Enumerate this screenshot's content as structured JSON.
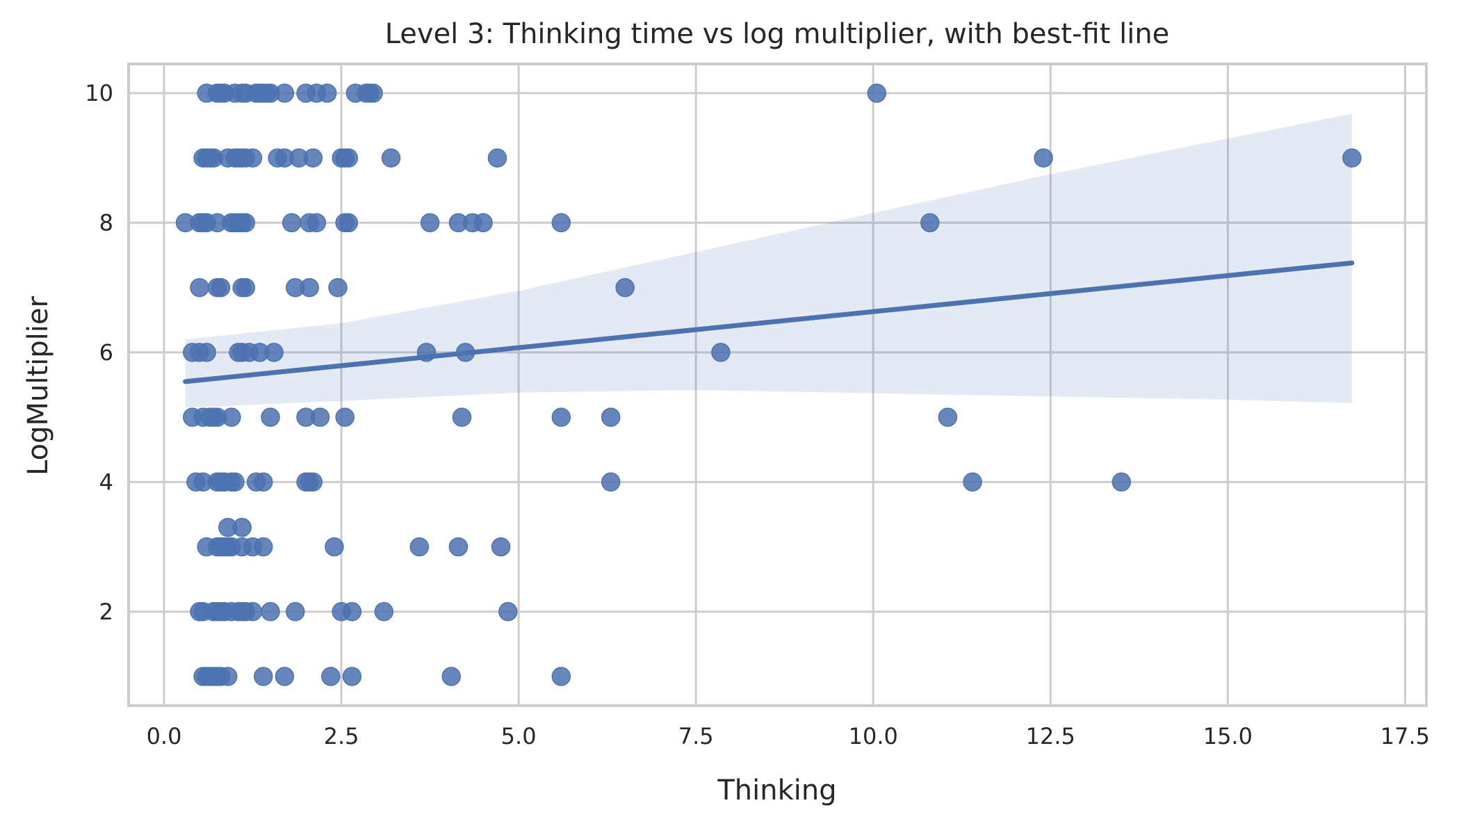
{
  "chart_data": {
    "type": "scatter",
    "title": "Level 3: Thinking time vs log multiplier, with best-fit line",
    "xlabel": "Thinking",
    "ylabel": "LogMultiplier",
    "xlim": [
      -0.5,
      17.8
    ],
    "ylim": [
      0.55,
      10.45
    ],
    "xticks": [
      0.0,
      2.5,
      5.0,
      7.5,
      10.0,
      12.5,
      15.0,
      17.5
    ],
    "xtick_labels": [
      "0.0",
      "2.5",
      "5.0",
      "7.5",
      "10.0",
      "12.5",
      "15.0",
      "17.5"
    ],
    "yticks": [
      2,
      4,
      6,
      8,
      10
    ],
    "ytick_labels": [
      "2",
      "4",
      "6",
      "8",
      "10"
    ],
    "grid": true,
    "colors": {
      "point": "#4c72b0",
      "line": "#4c72b0",
      "band": "#4c72b0"
    },
    "points": [
      {
        "x": 0.6,
        "y": 10
      },
      {
        "x": 0.75,
        "y": 10
      },
      {
        "x": 0.8,
        "y": 10
      },
      {
        "x": 0.85,
        "y": 10
      },
      {
        "x": 1.0,
        "y": 10
      },
      {
        "x": 1.1,
        "y": 10
      },
      {
        "x": 1.15,
        "y": 10
      },
      {
        "x": 1.3,
        "y": 10
      },
      {
        "x": 1.35,
        "y": 10
      },
      {
        "x": 1.4,
        "y": 10
      },
      {
        "x": 1.45,
        "y": 10
      },
      {
        "x": 1.5,
        "y": 10
      },
      {
        "x": 1.7,
        "y": 10
      },
      {
        "x": 2.0,
        "y": 10
      },
      {
        "x": 2.15,
        "y": 10
      },
      {
        "x": 2.3,
        "y": 10
      },
      {
        "x": 2.7,
        "y": 10
      },
      {
        "x": 2.85,
        "y": 10
      },
      {
        "x": 2.9,
        "y": 10
      },
      {
        "x": 2.95,
        "y": 10
      },
      {
        "x": 10.05,
        "y": 10
      },
      {
        "x": 0.55,
        "y": 9
      },
      {
        "x": 0.6,
        "y": 9
      },
      {
        "x": 0.65,
        "y": 9
      },
      {
        "x": 0.7,
        "y": 9
      },
      {
        "x": 0.9,
        "y": 9
      },
      {
        "x": 1.0,
        "y": 9
      },
      {
        "x": 1.05,
        "y": 9
      },
      {
        "x": 1.1,
        "y": 9
      },
      {
        "x": 1.15,
        "y": 9
      },
      {
        "x": 1.25,
        "y": 9
      },
      {
        "x": 1.6,
        "y": 9
      },
      {
        "x": 1.7,
        "y": 9
      },
      {
        "x": 1.9,
        "y": 9
      },
      {
        "x": 2.1,
        "y": 9
      },
      {
        "x": 2.5,
        "y": 9
      },
      {
        "x": 2.55,
        "y": 9
      },
      {
        "x": 2.6,
        "y": 9
      },
      {
        "x": 3.2,
        "y": 9
      },
      {
        "x": 4.7,
        "y": 9
      },
      {
        "x": 12.4,
        "y": 9
      },
      {
        "x": 16.75,
        "y": 9
      },
      {
        "x": 0.3,
        "y": 8
      },
      {
        "x": 0.5,
        "y": 8
      },
      {
        "x": 0.55,
        "y": 8
      },
      {
        "x": 0.6,
        "y": 8
      },
      {
        "x": 0.75,
        "y": 8
      },
      {
        "x": 0.95,
        "y": 8
      },
      {
        "x": 1.0,
        "y": 8
      },
      {
        "x": 1.05,
        "y": 8
      },
      {
        "x": 1.1,
        "y": 8
      },
      {
        "x": 1.15,
        "y": 8
      },
      {
        "x": 1.8,
        "y": 8
      },
      {
        "x": 2.05,
        "y": 8
      },
      {
        "x": 2.15,
        "y": 8
      },
      {
        "x": 2.55,
        "y": 8
      },
      {
        "x": 2.6,
        "y": 8
      },
      {
        "x": 3.75,
        "y": 8
      },
      {
        "x": 4.15,
        "y": 8
      },
      {
        "x": 4.35,
        "y": 8
      },
      {
        "x": 4.5,
        "y": 8
      },
      {
        "x": 5.6,
        "y": 8
      },
      {
        "x": 10.8,
        "y": 8
      },
      {
        "x": 0.5,
        "y": 7
      },
      {
        "x": 0.75,
        "y": 7
      },
      {
        "x": 0.8,
        "y": 7
      },
      {
        "x": 1.1,
        "y": 7
      },
      {
        "x": 1.15,
        "y": 7
      },
      {
        "x": 1.85,
        "y": 7
      },
      {
        "x": 2.05,
        "y": 7
      },
      {
        "x": 2.45,
        "y": 7
      },
      {
        "x": 6.5,
        "y": 7
      },
      {
        "x": 0.4,
        "y": 6
      },
      {
        "x": 0.5,
        "y": 6
      },
      {
        "x": 0.6,
        "y": 6
      },
      {
        "x": 1.05,
        "y": 6
      },
      {
        "x": 1.1,
        "y": 6
      },
      {
        "x": 1.2,
        "y": 6
      },
      {
        "x": 1.35,
        "y": 6
      },
      {
        "x": 1.55,
        "y": 6
      },
      {
        "x": 3.7,
        "y": 6
      },
      {
        "x": 4.25,
        "y": 6
      },
      {
        "x": 7.85,
        "y": 6
      },
      {
        "x": 0.4,
        "y": 5
      },
      {
        "x": 0.55,
        "y": 5
      },
      {
        "x": 0.65,
        "y": 5
      },
      {
        "x": 0.7,
        "y": 5
      },
      {
        "x": 0.75,
        "y": 5
      },
      {
        "x": 0.95,
        "y": 5
      },
      {
        "x": 1.5,
        "y": 5
      },
      {
        "x": 2.0,
        "y": 5
      },
      {
        "x": 2.2,
        "y": 5
      },
      {
        "x": 2.55,
        "y": 5
      },
      {
        "x": 4.2,
        "y": 5
      },
      {
        "x": 5.6,
        "y": 5
      },
      {
        "x": 6.3,
        "y": 5
      },
      {
        "x": 11.05,
        "y": 5
      },
      {
        "x": 0.45,
        "y": 4
      },
      {
        "x": 0.55,
        "y": 4
      },
      {
        "x": 0.75,
        "y": 4
      },
      {
        "x": 0.8,
        "y": 4
      },
      {
        "x": 0.85,
        "y": 4
      },
      {
        "x": 0.95,
        "y": 4
      },
      {
        "x": 1.0,
        "y": 4
      },
      {
        "x": 1.3,
        "y": 4
      },
      {
        "x": 1.4,
        "y": 4
      },
      {
        "x": 2.0,
        "y": 4
      },
      {
        "x": 2.05,
        "y": 4
      },
      {
        "x": 2.1,
        "y": 4
      },
      {
        "x": 6.3,
        "y": 4
      },
      {
        "x": 11.4,
        "y": 4
      },
      {
        "x": 13.5,
        "y": 4
      },
      {
        "x": 0.9,
        "y": 3.3
      },
      {
        "x": 1.1,
        "y": 3.3
      },
      {
        "x": 0.6,
        "y": 3
      },
      {
        "x": 0.75,
        "y": 3
      },
      {
        "x": 0.8,
        "y": 3
      },
      {
        "x": 0.85,
        "y": 3
      },
      {
        "x": 0.9,
        "y": 3
      },
      {
        "x": 0.95,
        "y": 3
      },
      {
        "x": 1.1,
        "y": 3
      },
      {
        "x": 1.25,
        "y": 3
      },
      {
        "x": 1.4,
        "y": 3
      },
      {
        "x": 2.4,
        "y": 3
      },
      {
        "x": 3.6,
        "y": 3
      },
      {
        "x": 4.15,
        "y": 3
      },
      {
        "x": 4.75,
        "y": 3
      },
      {
        "x": 0.5,
        "y": 2
      },
      {
        "x": 0.55,
        "y": 2
      },
      {
        "x": 0.7,
        "y": 2
      },
      {
        "x": 0.75,
        "y": 2
      },
      {
        "x": 0.8,
        "y": 2
      },
      {
        "x": 0.85,
        "y": 2
      },
      {
        "x": 0.95,
        "y": 2
      },
      {
        "x": 1.05,
        "y": 2
      },
      {
        "x": 1.1,
        "y": 2
      },
      {
        "x": 1.15,
        "y": 2
      },
      {
        "x": 1.25,
        "y": 2
      },
      {
        "x": 1.5,
        "y": 2
      },
      {
        "x": 1.85,
        "y": 2
      },
      {
        "x": 2.5,
        "y": 2
      },
      {
        "x": 2.65,
        "y": 2
      },
      {
        "x": 3.1,
        "y": 2
      },
      {
        "x": 4.85,
        "y": 2
      },
      {
        "x": 0.55,
        "y": 1
      },
      {
        "x": 0.6,
        "y": 1
      },
      {
        "x": 0.65,
        "y": 1
      },
      {
        "x": 0.7,
        "y": 1
      },
      {
        "x": 0.75,
        "y": 1
      },
      {
        "x": 0.8,
        "y": 1
      },
      {
        "x": 0.9,
        "y": 1
      },
      {
        "x": 1.4,
        "y": 1
      },
      {
        "x": 1.7,
        "y": 1
      },
      {
        "x": 2.35,
        "y": 1
      },
      {
        "x": 2.65,
        "y": 1
      },
      {
        "x": 4.05,
        "y": 1
      },
      {
        "x": 5.6,
        "y": 1
      }
    ],
    "fit_line": {
      "x": [
        0.3,
        16.75
      ],
      "y": [
        5.55,
        7.38
      ]
    },
    "confidence_band": {
      "x": [
        0.3,
        2.5,
        5.0,
        7.5,
        10.0,
        12.5,
        15.0,
        16.75
      ],
      "upper": [
        6.2,
        6.45,
        6.95,
        7.55,
        8.15,
        8.75,
        9.3,
        9.68
      ],
      "lower": [
        5.15,
        5.25,
        5.38,
        5.42,
        5.37,
        5.32,
        5.27,
        5.22
      ]
    }
  }
}
